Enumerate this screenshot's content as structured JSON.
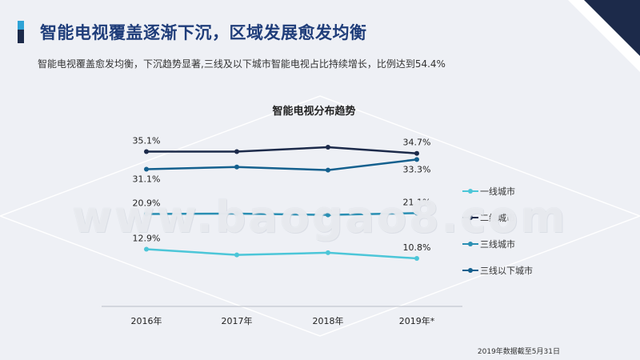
{
  "page": {
    "title": "智能电视覆盖逐渐下沉，区域发展愈发均衡",
    "subtitle": "智能电视覆盖愈发均衡，下沉趋势显著,三线及以下城市智能电视占比持续增长，比例达到54.4%",
    "footnote": "2019年数据截至5月31日",
    "watermark": "www.baogao8.com"
  },
  "colors": {
    "background": "#eef0f5",
    "title": "#1f3d7a",
    "accent_light": "#2ea3d6",
    "accent_dark": "#1c2a4a"
  },
  "chart_data": {
    "type": "line",
    "title": "智能电视分布趋势",
    "categories": [
      "2016年",
      "2017年",
      "2018年",
      "2019年*"
    ],
    "ylim": [
      0,
      40
    ],
    "grid": false,
    "legend_position": "right",
    "series": [
      {
        "name": "一线城市",
        "color": "#4cc6d8",
        "values": [
          12.9,
          11.6,
          12.1,
          10.8
        ],
        "labels": [
          "12.9%",
          null,
          null,
          "10.8%"
        ]
      },
      {
        "name": "二线城市",
        "color": "#1c2a4a",
        "values": [
          35.1,
          35.1,
          36.1,
          34.7
        ],
        "labels": [
          "35.1%",
          null,
          null,
          "34.7%"
        ]
      },
      {
        "name": "三线城市",
        "color": "#2a8fb3",
        "values": [
          20.9,
          21.0,
          20.7,
          21.1
        ],
        "labels": [
          "20.9%",
          null,
          null,
          "21.1%"
        ]
      },
      {
        "name": "三线以下城市",
        "color": "#14608e",
        "values": [
          31.1,
          31.6,
          30.9,
          33.3
        ],
        "labels": [
          "31.1%",
          null,
          null,
          "33.3%"
        ]
      }
    ]
  }
}
